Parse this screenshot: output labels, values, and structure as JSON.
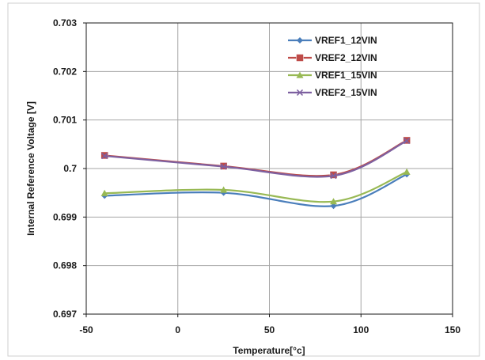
{
  "chart_data": {
    "type": "line",
    "title": "",
    "xlabel": "Temperature[°c]",
    "ylabel": "Internal Reference Voltage [V]",
    "xlim": [
      -50,
      150
    ],
    "ylim": [
      0.697,
      0.703
    ],
    "x_ticks": [
      -50,
      0,
      50,
      100,
      150
    ],
    "x_tick_labels": [
      "-50",
      "0",
      "50",
      "100",
      "150"
    ],
    "y_ticks": [
      0.697,
      0.698,
      0.699,
      0.7,
      0.701,
      0.702,
      0.703
    ],
    "y_tick_labels": [
      "0.697",
      "0.698",
      "0.699",
      "0.7",
      "0.701",
      "0.702",
      "0.703"
    ],
    "grid": true,
    "legend_position": "top-right",
    "series": [
      {
        "name": "VREF1_12VIN",
        "color": "#4a7ebb",
        "marker": "diamond",
        "x": [
          -40,
          25,
          85,
          125
        ],
        "y": [
          0.69944,
          0.6995,
          0.69923,
          0.69988
        ]
      },
      {
        "name": "VREF2_12VIN",
        "color": "#be4b48",
        "marker": "square",
        "x": [
          -40,
          25,
          85,
          125
        ],
        "y": [
          0.70027,
          0.70005,
          0.69987,
          0.70058
        ]
      },
      {
        "name": "VREF1_15VIN",
        "color": "#98b954",
        "marker": "triangle",
        "x": [
          -40,
          25,
          85,
          125
        ],
        "y": [
          0.69949,
          0.69956,
          0.69932,
          0.69993
        ]
      },
      {
        "name": "VREF2_15VIN",
        "color": "#7d60a0",
        "marker": "x",
        "x": [
          -40,
          25,
          85,
          125
        ],
        "y": [
          0.70026,
          0.70004,
          0.69985,
          0.70057
        ]
      }
    ]
  }
}
